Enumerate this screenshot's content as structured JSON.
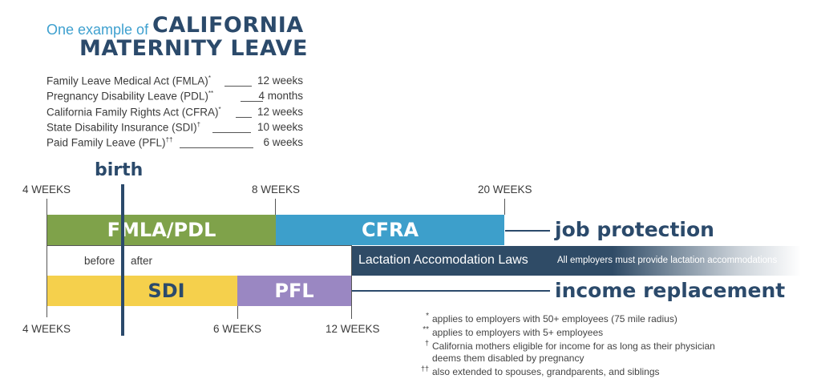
{
  "title": {
    "prefix": "One example of",
    "line1": "CALIFORNIA",
    "line2": "MATERNITY LEAVE"
  },
  "leave_list": [
    {
      "name": "Family Leave Medical Act (FMLA)",
      "mark": "*",
      "value": "12 weeks"
    },
    {
      "name": "Pregnancy Disability Leave (PDL)",
      "mark": "**",
      "value": "4 months"
    },
    {
      "name": "California Family Rights Act (CFRA)",
      "mark": "*",
      "value": "12 weeks"
    },
    {
      "name": "State Disability Insurance (SDI)",
      "mark": "†",
      "value": "10 weeks"
    },
    {
      "name": "Paid Family Leave (PFL)",
      "mark": "††",
      "value": "6 weeks"
    }
  ],
  "timeline": {
    "birth_label": "birth",
    "top_ticks": [
      "4 WEEKS",
      "8 WEEKS",
      "20 WEEKS"
    ],
    "bottom_ticks": [
      "4 WEEKS",
      "6 WEEKS",
      "12 WEEKS"
    ],
    "before_label": "before",
    "after_label": "after",
    "bars": {
      "fmla_pdl": {
        "label": "FMLA/PDL",
        "color": "#7fa24a"
      },
      "cfra": {
        "label": "CFRA",
        "color": "#3d9fcb"
      },
      "lactation": {
        "label": "Lactation Accomodation Laws",
        "note": "All employers must provide lactation accommodations",
        "color": "#2f4b66"
      },
      "sdi": {
        "label": "SDI",
        "color": "#f5d04c"
      },
      "pfl": {
        "label": "PFL",
        "color": "#9a87c2"
      }
    },
    "job_protection": "job protection",
    "income_replacement": "income replacement"
  },
  "footnotes": [
    {
      "mark": "*",
      "text": "applies to employers with 50+ employees (75 mile radius)"
    },
    {
      "mark": "**",
      "text": "applies to employers with 5+ employees"
    },
    {
      "mark": "†",
      "text": "California mothers eligible for income for as long as their physician"
    },
    {
      "mark": "",
      "text": "deems them disabled by pregnancy"
    },
    {
      "mark": "††",
      "text": "also extended to spouses, grandparents, and siblings"
    }
  ]
}
